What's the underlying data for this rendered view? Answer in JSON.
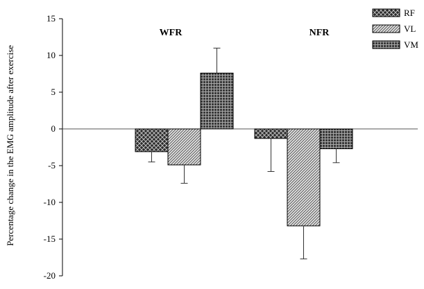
{
  "chart_data": {
    "type": "bar",
    "title": "",
    "xlabel": "",
    "ylabel": "Percentage change in the EMG amplitude after exercise",
    "ylim": [
      -20,
      15
    ],
    "yticks": [
      15,
      10,
      5,
      0,
      -5,
      -10,
      -15,
      -20
    ],
    "ytick_labels": [
      "15",
      "10",
      "5",
      "0",
      "-5",
      "-10",
      "-15",
      "-20"
    ],
    "categories": [
      "WFR",
      "NFR"
    ],
    "series": [
      {
        "name": "RF",
        "pattern": "crosshatch-dark",
        "values": [
          -3.1,
          -1.3
        ],
        "errors": [
          1.4,
          4.5
        ]
      },
      {
        "name": "VL",
        "pattern": "diagonal-light",
        "values": [
          -4.9,
          -13.2
        ],
        "errors": [
          2.5,
          4.5
        ]
      },
      {
        "name": "VM",
        "pattern": "grid-dark",
        "values": [
          7.6,
          -2.7
        ],
        "errors": [
          3.4,
          1.9
        ]
      }
    ],
    "grid": false,
    "legend_position": "top-right"
  }
}
